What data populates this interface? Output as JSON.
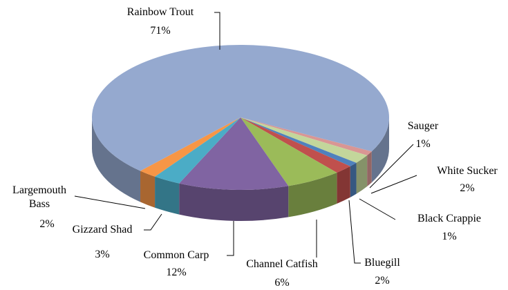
{
  "chart_data": {
    "type": "pie3d",
    "categories": [
      "Sauger",
      "White Sucker",
      "Black Crappie",
      "Bluegill",
      "Channel Catfish",
      "Common Carp",
      "Gizzard Shad",
      "Largemouth Bass",
      "Rainbow Trout"
    ],
    "values": [
      1,
      2,
      1,
      2,
      6,
      12,
      3,
      2,
      71
    ],
    "value_labels": [
      "1%",
      "2%",
      "1%",
      "2%",
      "6%",
      "12%",
      "3%",
      "2%",
      "71%"
    ],
    "colors": [
      "#d99694",
      "#c3d69b",
      "#4f81bd",
      "#c0504d",
      "#9bbb59",
      "#8064a2",
      "#4bacc6",
      "#f79646",
      "#95a9cf"
    ]
  }
}
